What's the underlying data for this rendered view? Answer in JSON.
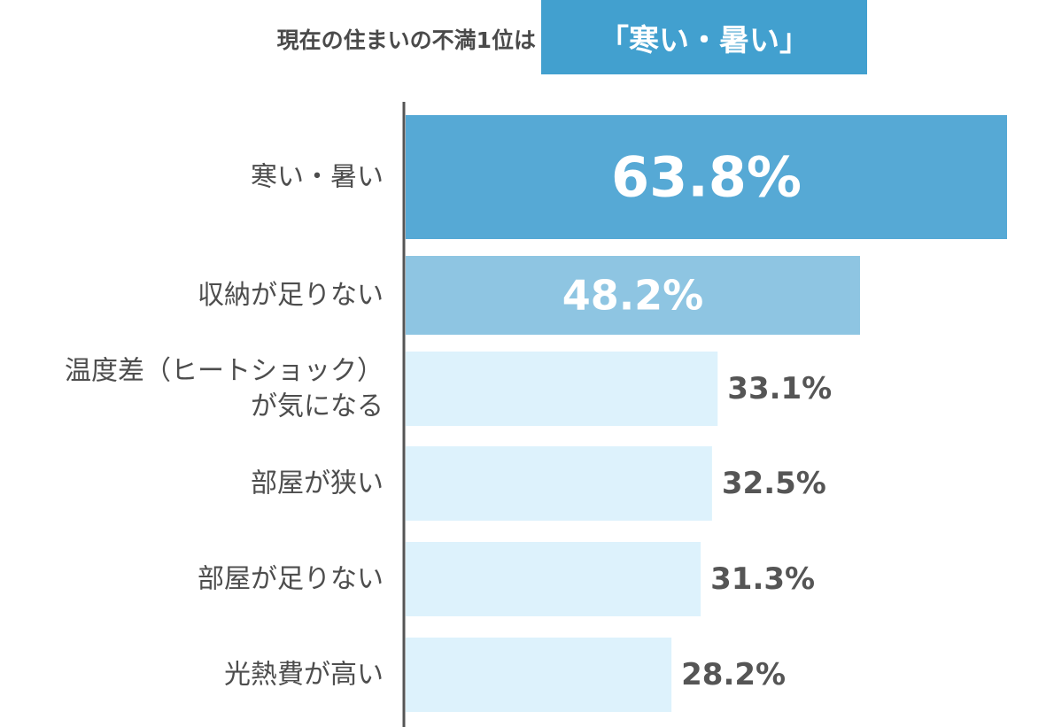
{
  "headline": {
    "text": "現在の住まいの不満1位は",
    "highlight": "「寒い・暑い」",
    "highlight_color": "#42a0cf"
  },
  "chart_data": {
    "type": "bar",
    "orientation": "horizontal",
    "categories": [
      [
        "寒い・暑い"
      ],
      [
        "収納が足りない"
      ],
      [
        "温度差（ヒートショック）",
        "が気になる"
      ],
      [
        "部屋が狭い"
      ],
      [
        "部屋が足りない"
      ],
      [
        "光熱費が高い"
      ]
    ],
    "values": [
      63.8,
      48.2,
      33.1,
      32.5,
      31.3,
      28.2
    ],
    "value_labels": [
      "63.8%",
      "48.2%",
      "33.1%",
      "32.5%",
      "31.3%",
      "28.2%"
    ],
    "bar_colors": [
      "#56a9d5",
      "#8ec5e2",
      "#ddf2fc",
      "#ddf2fc",
      "#ddf2fc",
      "#ddf2fc"
    ],
    "label_inside": [
      true,
      true,
      false,
      false,
      false,
      false
    ],
    "inside_label_color": "#ffffff",
    "outside_label_color": "#555555",
    "category_label_color": "#4d4d4d",
    "axis_color": "#555555",
    "grid": false,
    "legend": "none"
  }
}
